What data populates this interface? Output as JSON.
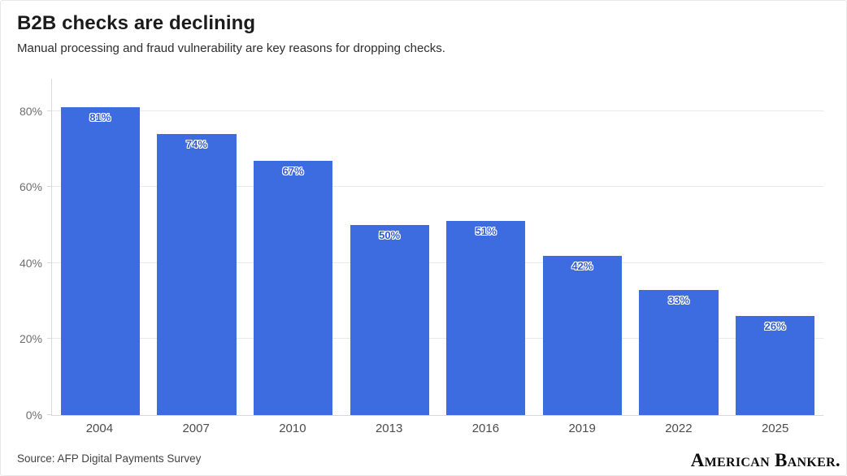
{
  "header": {
    "title": "B2B checks are declining",
    "subtitle": "Manual processing and fraud vulnerability are key reasons for dropping checks."
  },
  "chart_data": {
    "type": "bar",
    "categories": [
      "2004",
      "2007",
      "2010",
      "2013",
      "2016",
      "2019",
      "2022",
      "2025"
    ],
    "values": [
      81,
      74,
      67,
      50,
      51,
      42,
      33,
      26
    ],
    "value_labels": [
      "81%",
      "74%",
      "67%",
      "50%",
      "51%",
      "42%",
      "33%",
      "26%"
    ],
    "title": "B2B checks are declining",
    "subtitle": "Manual processing and fraud vulnerability are key reasons for dropping checks.",
    "xlabel": "",
    "ylabel": "",
    "ylim": [
      0,
      88.5
    ],
    "yticks": [
      0,
      20,
      40,
      60,
      80
    ],
    "ytick_labels": [
      "0%",
      "20%",
      "40%",
      "60%",
      "80%"
    ],
    "grid": true,
    "legend": "none",
    "bar_color": "#3D6CE0",
    "value_label_color": "#2e5bd6",
    "gridline_color": "#e9e9e9",
    "axis_color": "#d9d9d9"
  },
  "footer": {
    "source": "Source: AFP Digital Payments Survey",
    "publisher_logo": "American Banker."
  }
}
